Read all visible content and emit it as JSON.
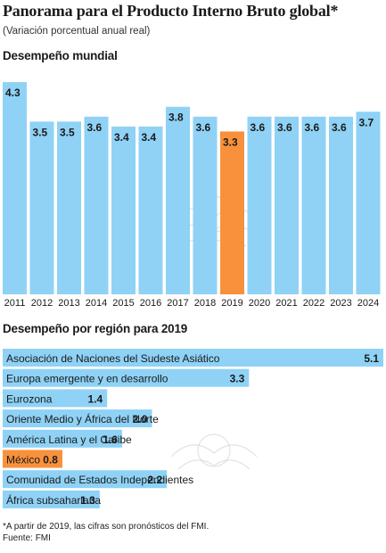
{
  "title": "Panorama para el Producto Interno Bruto global*",
  "subtitle": "(Variación porcentual anual real)",
  "colors": {
    "bar": "#8fd2f6",
    "highlight": "#f8913c"
  },
  "chart_data": [
    {
      "type": "bar",
      "title": "Desempeño mundial",
      "categories": [
        "2011",
        "2012",
        "2013",
        "2014",
        "2015",
        "2016",
        "2017",
        "2018",
        "2019",
        "2020",
        "2021",
        "2022",
        "2023",
        "2024"
      ],
      "values": [
        4.3,
        3.5,
        3.5,
        3.6,
        3.4,
        3.4,
        3.8,
        3.6,
        3.3,
        3.6,
        3.6,
        3.6,
        3.6,
        3.7
      ],
      "value_labels": [
        "4.3",
        "3.5",
        "3.5",
        "3.6",
        "3.4",
        "3.4",
        "3.8",
        "3.6",
        "3.3",
        "3.6",
        "3.6",
        "3.6",
        "3.6",
        "3.7"
      ],
      "highlight": "2019",
      "grid": false,
      "legend": "none"
    },
    {
      "type": "bar",
      "orientation": "horizontal",
      "title": "Desempeño por región para 2019",
      "categories": [
        "Asociación de Naciones  del Sudeste Asiático",
        "Europa emergente y en desarrollo",
        "Eurozona",
        "Oriente Medio y África del Norte",
        "América Latina y el Caribe",
        "México",
        "Comunidad de Estados Independientes",
        "África subsahariana"
      ],
      "values": [
        5.1,
        3.3,
        1.4,
        2.0,
        1.6,
        0.8,
        2.2,
        1.3
      ],
      "value_labels": [
        "5.1",
        "3.3",
        "1.4",
        "2.0",
        "1.6",
        "0.8",
        "2.2",
        "1.3"
      ],
      "highlight": "México",
      "grid": false,
      "legend": "none"
    }
  ],
  "footnote": "*A partir de 2019, las cifras son pronósticos del FMI.",
  "source": "Fuente: FMI"
}
